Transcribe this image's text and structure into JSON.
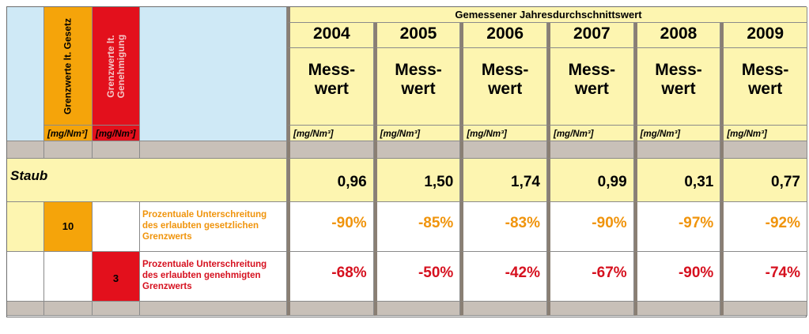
{
  "header": {
    "section_title": "Gemessener Jahresdurchschnittswert",
    "col_gesetz": "Grenzwerte lt. Gesetz",
    "col_genehmigung": "Grenzwerte lt. Genehmigung",
    "unit": "[mg/Nm³]",
    "mess_line1": "Mess-",
    "mess_line2": "wert"
  },
  "years": [
    "2004",
    "2005",
    "2006",
    "2007",
    "2008",
    "2009"
  ],
  "substance": {
    "name": "Staub",
    "values": [
      "0,96",
      "1,50",
      "1,74",
      "0,99",
      "0,31",
      "0,77"
    ]
  },
  "rows": [
    {
      "limit_gesetz": "10",
      "desc_lines": [
        "Prozentuale Unterschreitung",
        "des erlaubten gesetzlichen",
        "Grenzwerts"
      ],
      "percents": [
        "-90%",
        "-85%",
        "-83%",
        "-90%",
        "-97%",
        "-92%"
      ]
    },
    {
      "limit_genehmigung": "3",
      "desc_lines": [
        "Prozentuale Unterschreitung",
        "des erlaubten genehmigten",
        "Grenzwerts"
      ],
      "percents": [
        "-68%",
        "-50%",
        "-42%",
        "-67%",
        "-90%",
        "-74%"
      ]
    }
  ],
  "colors": {
    "blue": "#cfe9f6",
    "yellow": "#fdf5b0",
    "orange": "#f5a40a",
    "red": "#e3101c",
    "gray": "#c8c0b8"
  }
}
